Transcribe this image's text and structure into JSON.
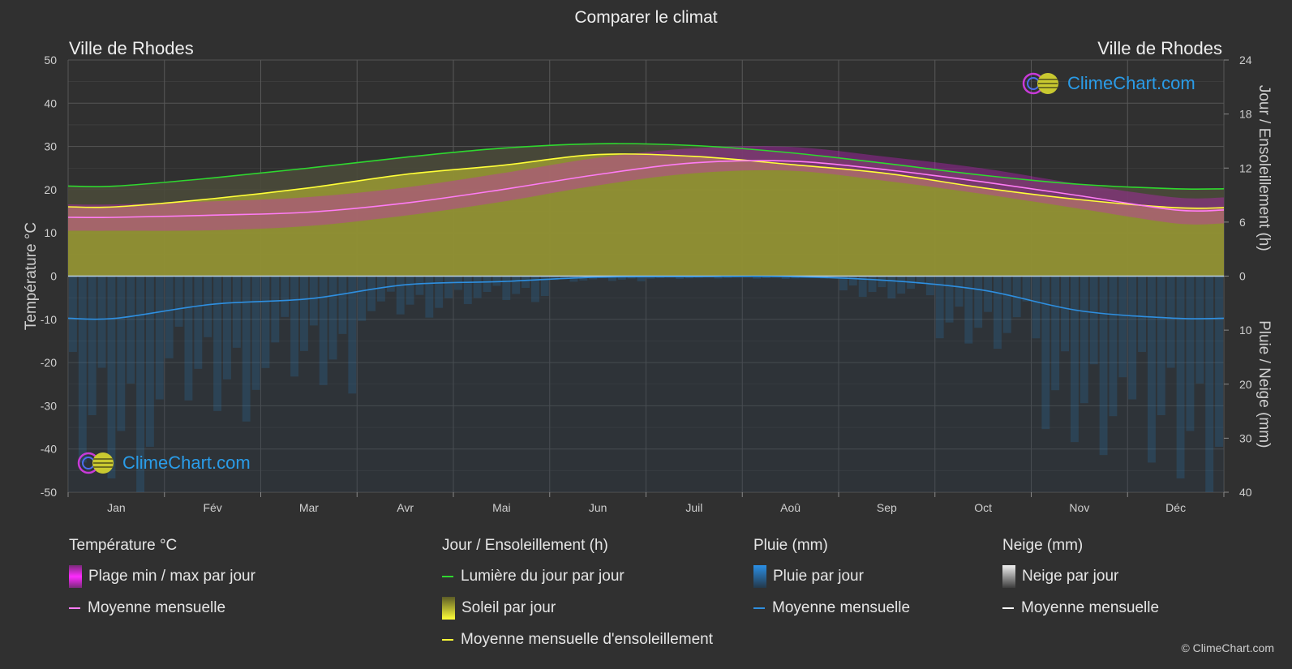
{
  "title": "Comparer le climat",
  "location_left": "Ville de Rhodes",
  "location_right": "Ville de Rhodes",
  "logo_text": "ClimeChart.com",
  "copyright": "© ClimeChart.com",
  "colors": {
    "background": "#303030",
    "temp_range": "#d21ed2",
    "temp_mean": "#ff7cf5",
    "daylight": "#2fd82f",
    "sunshine_fill": "#9a9a32",
    "sunshine_mean": "#ffff38",
    "rain": "#2a7fbf",
    "rain_mean": "#2e8fe0",
    "snow": "#d0d0d0",
    "snow_mean": "#ffffff",
    "logo": "#2a9ce8"
  },
  "legend": {
    "temperature": {
      "heading": "Température °C",
      "items": [
        {
          "label": "Plage min / max par jour",
          "icon": "magenta-gradient-box"
        },
        {
          "label": "Moyenne mensuelle",
          "icon": "pink-line"
        }
      ]
    },
    "sun": {
      "heading": "Jour / Ensoleillement (h)",
      "items": [
        {
          "label": "Lumière du jour par jour",
          "icon": "green-line"
        },
        {
          "label": "Soleil par jour",
          "icon": "yellow-gradient-box"
        },
        {
          "label": "Moyenne mensuelle d'ensoleillement",
          "icon": "yellow-line"
        }
      ]
    },
    "rain": {
      "heading": "Pluie (mm)",
      "items": [
        {
          "label": "Pluie par jour",
          "icon": "blue-gradient-box"
        },
        {
          "label": "Moyenne mensuelle",
          "icon": "blue-line"
        }
      ]
    },
    "snow": {
      "heading": "Neige (mm)",
      "items": [
        {
          "label": "Neige par jour",
          "icon": "white-gradient-box"
        },
        {
          "label": "Moyenne mensuelle",
          "icon": "white-line"
        }
      ]
    }
  },
  "chart_data": {
    "type": "line",
    "categories": [
      "Jan",
      "Fév",
      "Mar",
      "Avr",
      "Mai",
      "Jun",
      "Juil",
      "Aoû",
      "Sep",
      "Oct",
      "Nov",
      "Déc"
    ],
    "y_left": {
      "label": "Température °C",
      "range": [
        -50,
        50
      ],
      "ticks": [
        50,
        40,
        30,
        20,
        10,
        0,
        -10,
        -20,
        -30,
        -40,
        -50
      ]
    },
    "y_right_top": {
      "label": "Jour / Ensoleillement (h)",
      "range": [
        0,
        24
      ],
      "ticks": [
        24,
        18,
        12,
        6,
        0
      ]
    },
    "y_right_bottom": {
      "label": "Pluie / Neige (mm)",
      "range": [
        0,
        40
      ],
      "ticks": [
        0,
        10,
        20,
        30,
        40
      ]
    },
    "grid": true,
    "series": [
      {
        "name": "Lumière du jour par jour",
        "axis": "hours",
        "values": [
          10.0,
          10.9,
          12.0,
          13.2,
          14.2,
          14.7,
          14.5,
          13.7,
          12.5,
          11.2,
          10.2,
          9.7
        ]
      },
      {
        "name": "Moyenne mensuelle d'ensoleillement",
        "axis": "hours",
        "values": [
          7.7,
          8.6,
          9.8,
          11.3,
          12.3,
          13.5,
          13.3,
          12.4,
          11.4,
          9.8,
          8.5,
          7.6
        ]
      },
      {
        "name": "Moyenne mensuelle",
        "role": "temp_mean",
        "axis": "temperature",
        "values": [
          13.6,
          14.1,
          14.8,
          16.9,
          20.0,
          23.5,
          26.2,
          26.6,
          24.6,
          21.8,
          18.6,
          15.3
        ]
      },
      {
        "name": "Moyenne mensuelle",
        "role": "rain_mean",
        "axis": "precip",
        "values": [
          7.8,
          5.2,
          4.2,
          1.6,
          1.0,
          0.2,
          0.1,
          0.1,
          0.8,
          2.6,
          6.4,
          7.8
        ]
      },
      {
        "name": "Plage min / max par jour",
        "role": "temp_range",
        "axis": "temperature",
        "min": [
          10.5,
          10.6,
          11.6,
          14.0,
          17.2,
          21.0,
          23.8,
          24.4,
          22.0,
          19.0,
          15.6,
          12.2
        ],
        "max": [
          16.6,
          17.3,
          18.3,
          20.5,
          23.8,
          27.4,
          29.6,
          29.9,
          27.6,
          24.9,
          21.3,
          18.2
        ]
      }
    ]
  }
}
